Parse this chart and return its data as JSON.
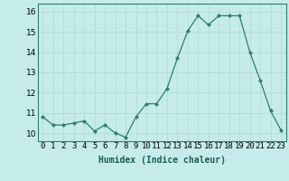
{
  "x": [
    0,
    1,
    2,
    3,
    4,
    5,
    6,
    7,
    8,
    9,
    10,
    11,
    12,
    13,
    14,
    15,
    16,
    17,
    18,
    19,
    20,
    21,
    22,
    23
  ],
  "y": [
    10.8,
    10.4,
    10.4,
    10.5,
    10.6,
    10.1,
    10.4,
    10.0,
    9.8,
    10.8,
    11.45,
    11.45,
    12.2,
    13.7,
    15.05,
    15.8,
    15.35,
    15.8,
    15.8,
    15.8,
    14.0,
    12.6,
    11.1,
    10.15
  ],
  "xlabel": "Humidex (Indice chaleur)",
  "ylim": [
    9.6,
    16.4
  ],
  "xlim": [
    -0.5,
    23.5
  ],
  "yticks": [
    10,
    11,
    12,
    13,
    14,
    15,
    16
  ],
  "xtick_labels": [
    "0",
    "1",
    "2",
    "3",
    "4",
    "5",
    "6",
    "7",
    "8",
    "9",
    "10",
    "11",
    "12",
    "13",
    "14",
    "15",
    "16",
    "17",
    "18",
    "19",
    "20",
    "21",
    "22",
    "23"
  ],
  "bg_color": "#c5ecea",
  "grid_color": "#b0d8d5",
  "line_color": "#2e7d6e",
  "marker_color": "#2e7d6e",
  "xlabel_fontsize": 7,
  "tick_fontsize": 6.5
}
